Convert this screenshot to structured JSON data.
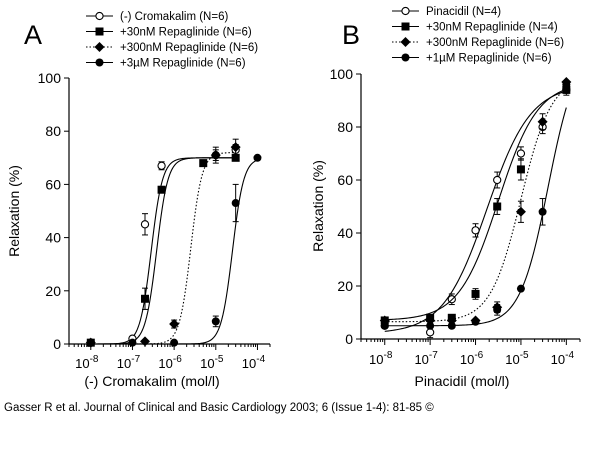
{
  "chart_data": [
    {
      "type": "scatter",
      "panel_label": "A",
      "title": "",
      "xlabel": "(-) Cromakalim (mol/l)",
      "ylabel": "Relaxation (%)",
      "x_scale": "log",
      "xlim": [
        3e-09,
        0.0002
      ],
      "ylim": [
        0,
        100
      ],
      "x_ticks": [
        1e-08,
        1e-07,
        1e-06,
        1e-05,
        0.0001
      ],
      "x_tick_labels": [
        {
          "base": "10",
          "exp": "-8"
        },
        {
          "base": "10",
          "exp": "-7"
        },
        {
          "base": "10",
          "exp": "-6"
        },
        {
          "base": "10",
          "exp": "-5"
        },
        {
          "base": "10",
          "exp": "-4"
        }
      ],
      "y_ticks": [
        0,
        20,
        40,
        60,
        80,
        100
      ],
      "legend_position": "top",
      "series": [
        {
          "name": "(-) Cromakalim",
          "n": "(N=6)",
          "marker": "open-circle",
          "line": "solid",
          "x": [
            1e-08,
            1e-07,
            2e-07,
            5e-07,
            1e-05,
            3e-05
          ],
          "y": [
            0.5,
            2,
            45,
            67,
            71,
            73
          ],
          "err": [
            0,
            0,
            4,
            1.5,
            2,
            2
          ],
          "fit": {
            "top": 70,
            "log_ec50": -6.55,
            "hill": 3.2
          }
        },
        {
          "name": "+30nM Repaglinide",
          "n": "(N=6)",
          "marker": "filled-square",
          "line": "solid",
          "x": [
            1e-08,
            2e-07,
            5e-07,
            5e-06,
            3e-05
          ],
          "y": [
            0.5,
            17,
            58,
            68,
            70
          ],
          "err": [
            0,
            4,
            0,
            0,
            0
          ],
          "fit": {
            "top": 70,
            "log_ec50": -6.42,
            "hill": 3.2
          }
        },
        {
          "name": "+300nM Repaglinide",
          "n": "(N=6)",
          "marker": "filled-diamond",
          "line": "dotted",
          "x": [
            1e-08,
            2e-07,
            1e-06,
            1e-05,
            3e-05
          ],
          "y": [
            0.5,
            1,
            7.5,
            71,
            74
          ],
          "err": [
            0,
            0,
            1.5,
            3,
            3
          ],
          "fit": {
            "top": 72,
            "log_ec50": -5.6,
            "hill": 3.2
          }
        },
        {
          "name": "+3µM Repaglinide",
          "n": "(N=6)",
          "marker": "filled-circle",
          "line": "solid",
          "x": [
            1e-08,
            1e-07,
            1e-06,
            1e-05,
            3e-05,
            0.0001
          ],
          "y": [
            0.5,
            0.5,
            0.5,
            8.5,
            53,
            70
          ],
          "err": [
            0,
            0,
            0,
            2,
            7,
            0
          ],
          "fit": {
            "top": 70,
            "log_ec50": -4.6,
            "hill": 3.2
          }
        }
      ]
    },
    {
      "type": "scatter",
      "panel_label": "B",
      "title": "",
      "xlabel": "Pinacidil (mol/l)",
      "ylabel": "Relaxation (%)",
      "x_scale": "log",
      "xlim": [
        3e-09,
        0.0002
      ],
      "ylim": [
        0,
        100
      ],
      "x_ticks": [
        1e-08,
        1e-07,
        1e-06,
        1e-05,
        0.0001
      ],
      "x_tick_labels": [
        {
          "base": "10",
          "exp": "-8"
        },
        {
          "base": "10",
          "exp": "-7"
        },
        {
          "base": "10",
          "exp": "-6"
        },
        {
          "base": "10",
          "exp": "-5"
        },
        {
          "base": "10",
          "exp": "-4"
        }
      ],
      "y_ticks": [
        0,
        20,
        40,
        60,
        80,
        100
      ],
      "legend_position": "top",
      "series": [
        {
          "name": "Pinacidil",
          "n": "(N=4)",
          "marker": "open-circle",
          "line": "solid",
          "x": [
            1e-08,
            1e-07,
            3e-07,
            1e-06,
            3e-06,
            1e-05,
            3e-05,
            0.0001
          ],
          "y": [
            5,
            2.5,
            15,
            41,
            60,
            70,
            80,
            94
          ],
          "err": [
            0,
            2,
            2,
            2.5,
            3,
            2.5,
            2.5,
            2
          ],
          "fit": {
            "bottom": 2,
            "top": 96,
            "log_ec50": -5.75,
            "hill": 0.9
          }
        },
        {
          "name": "+30nM Repaglinide",
          "n": "(N=4)",
          "marker": "filled-square",
          "line": "solid",
          "x": [
            1e-08,
            1e-07,
            3e-07,
            1e-06,
            3e-06,
            1e-05,
            0.0001
          ],
          "y": [
            7,
            8,
            8,
            17,
            50,
            64,
            94
          ],
          "err": [
            0,
            0,
            0,
            2,
            3,
            4,
            0
          ],
          "fit": {
            "bottom": 7,
            "top": 97,
            "log_ec50": -5.5,
            "hill": 1.0
          }
        },
        {
          "name": "+300nM Repaglinide",
          "n": "(N=6)",
          "marker": "filled-diamond",
          "line": "dotted",
          "x": [
            1e-08,
            1e-07,
            3e-07,
            1e-06,
            3e-06,
            1e-05,
            3e-05,
            0.0001
          ],
          "y": [
            7,
            7,
            7,
            7,
            12,
            48,
            82,
            97
          ],
          "err": [
            0,
            0,
            0,
            0,
            2,
            4,
            3,
            0
          ],
          "fit": {
            "bottom": 6.5,
            "top": 99,
            "log_ec50": -5.0,
            "hill": 1.3
          }
        },
        {
          "name": "+1µM Repaglinide",
          "n": "(N=6)",
          "marker": "filled-circle",
          "line": "solid",
          "x": [
            1e-08,
            1e-07,
            3e-07,
            1e-06,
            3e-06,
            1e-05,
            3e-05,
            0.0001
          ],
          "y": [
            5,
            5,
            5,
            6.5,
            11,
            19,
            48,
            96
          ],
          "err": [
            0,
            0,
            0,
            0,
            2,
            0,
            5,
            0
          ],
          "fit": {
            "bottom": 5,
            "top": 110,
            "log_ec50": -4.4,
            "hill": 1.4
          }
        }
      ]
    }
  ],
  "citation": "Gasser R et al. Journal of Clinical and Basic Cardiology 2003; 6 (Issue 1-4): 81-85 ©"
}
